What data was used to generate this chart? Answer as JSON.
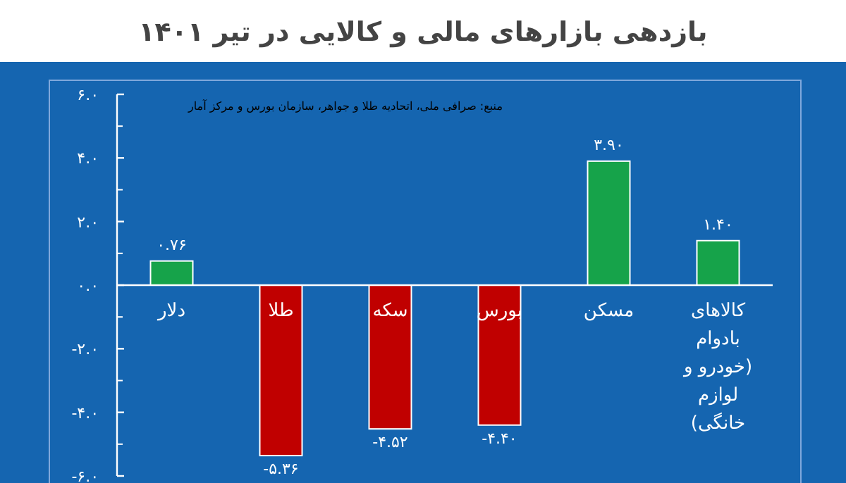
{
  "chart_data": {
    "type": "bar",
    "title": "بازدهی بازارهای مالی و کالایی در تیر ۱۴۰۱",
    "annotations": [
      "منبع: صرافی ملی، اتحادیه طلا و جواهر، سازمان بورس و مرکز آمار"
    ],
    "categories": [
      "دلار",
      "طلا",
      "سکه",
      "بورس",
      "مسکن",
      "کالاهای بادوام (خودرو و لوازم خانگی)"
    ],
    "values": [
      0.76,
      -5.36,
      -4.52,
      -4.4,
      3.9,
      1.4
    ],
    "colors": [
      "#16a34a",
      "#c00000",
      "#c00000",
      "#c00000",
      "#16a34a",
      "#16a34a"
    ],
    "value_labels": [
      "۰.۷۶",
      "-۵.۳۶",
      "-۴.۵۲",
      "-۴.۴۰",
      "۳.۹۰",
      "۱.۴۰"
    ],
    "ylim": [
      -6,
      6
    ],
    "yticks": [
      {
        "value": -6,
        "label": "-۶.۰"
      },
      {
        "value": -4,
        "label": "-۴.۰"
      },
      {
        "value": -2,
        "label": "-۲.۰"
      },
      {
        "value": 0,
        "label": "۰.۰"
      },
      {
        "value": 2,
        "label": "۲.۰"
      },
      {
        "value": 4,
        "label": "۴.۰"
      },
      {
        "value": 6,
        "label": "۶.۰"
      }
    ]
  }
}
